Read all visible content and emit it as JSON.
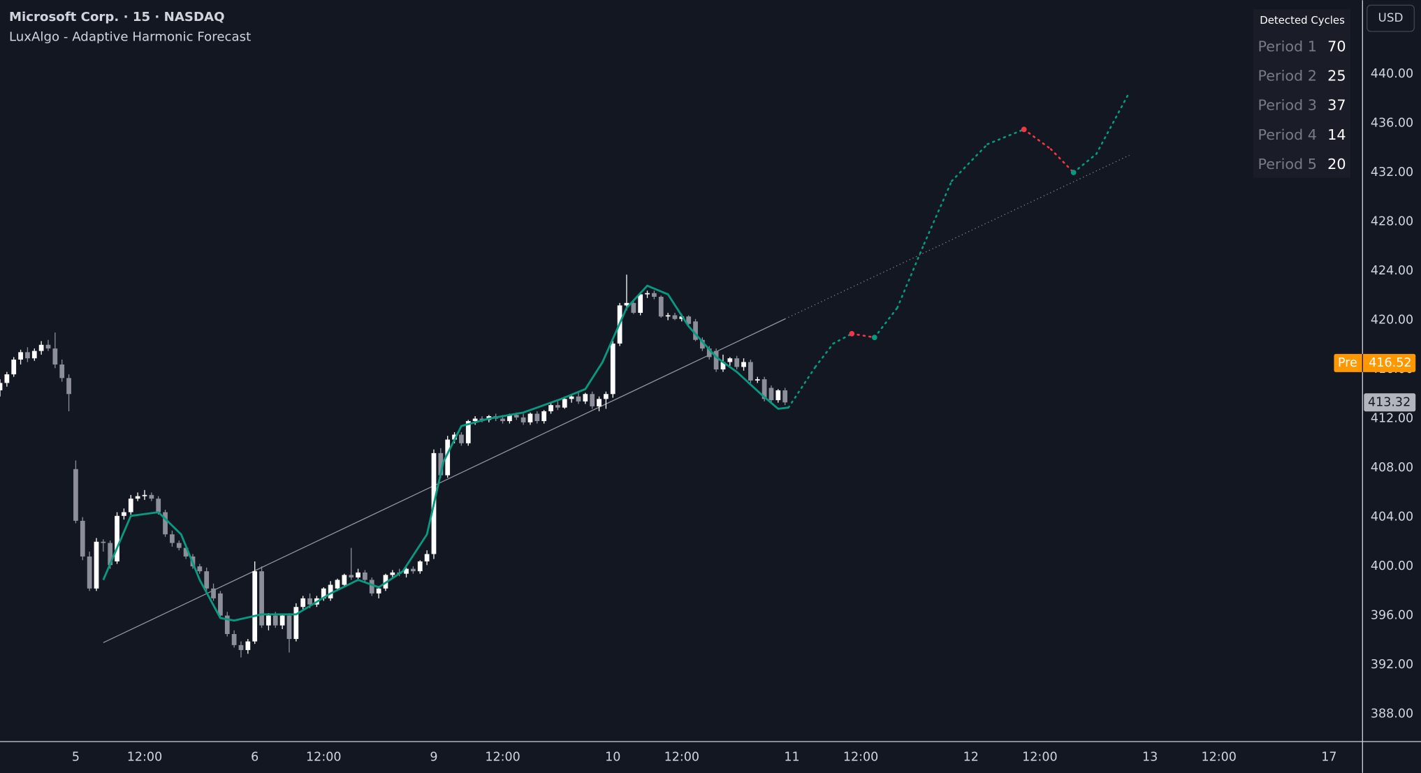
{
  "chart_data": {
    "type": "candlestick",
    "title": "Microsoft Corp. · 15 · NASDAQ",
    "subtitle": "LuxAlgo - Adaptive Harmonic Forecast",
    "currency": "USD",
    "up_color": "#ffffff",
    "down_color": "#8c8f99",
    "x": [
      -11,
      -10,
      -9,
      -8,
      -7,
      -6,
      -5,
      -4,
      -3,
      -2,
      -1,
      0,
      1,
      2,
      3,
      4,
      5,
      6,
      7,
      8,
      9,
      10,
      11,
      12,
      13,
      14,
      15,
      16,
      17,
      18,
      19,
      20,
      21,
      22,
      23,
      24,
      25,
      26,
      27,
      28,
      29,
      30,
      31,
      32,
      33,
      34,
      35,
      36,
      37,
      38,
      39,
      40,
      41,
      42,
      43,
      44,
      45,
      46,
      47,
      48,
      49,
      50,
      51,
      52,
      53,
      54,
      55,
      56,
      57,
      58,
      59,
      60,
      61,
      62,
      63,
      64,
      65,
      66,
      67,
      68,
      69,
      70,
      71,
      72,
      73,
      74,
      75,
      76,
      77,
      78,
      79,
      80,
      81,
      82,
      83,
      84,
      85,
      86,
      87,
      88,
      89,
      90,
      91,
      92,
      93,
      94,
      95,
      96,
      97,
      98,
      99,
      100,
      101,
      102,
      103
    ],
    "open": [
      414.3,
      414.9,
      415.6,
      416.8,
      417.4,
      416.9,
      417.5,
      418.0,
      417.7,
      416.4,
      415.3,
      407.9,
      403.7,
      400.8,
      398.2,
      402.0,
      401.9,
      400.4,
      404.1,
      404.4,
      405.5,
      405.7,
      405.8,
      405.5,
      404.4,
      402.6,
      401.9,
      401.5,
      400.8,
      400.0,
      399.6,
      398.2,
      397.8,
      396.0,
      394.5,
      393.6,
      393.2,
      393.9,
      399.6,
      395.2,
      396.0,
      395.2,
      396.0,
      394.1,
      396.7,
      397.4,
      396.9,
      397.4,
      397.4,
      398.2,
      398.5,
      399.3,
      399.1,
      399.5,
      398.9,
      397.8,
      398.2,
      399.3,
      399.5,
      399.4,
      399.8,
      399.6,
      400.4,
      401.0,
      409.2,
      407.4,
      410.3,
      410.7,
      410.0,
      411.8,
      412.0,
      411.9,
      412.2,
      412.0,
      411.8,
      412.3,
      412.1,
      411.7,
      412.4,
      411.8,
      412.6,
      413.1,
      412.9,
      413.6,
      413.8,
      413.4,
      414.0,
      413.0,
      413.6,
      414.0,
      418.1,
      421.2,
      421.4,
      420.6,
      422.1,
      422.2,
      421.9,
      420.3,
      420.4,
      420.1,
      420.3,
      419.9,
      418.4,
      417.7,
      417.5,
      416.0,
      416.6,
      416.9,
      416.2,
      416.6,
      415.1,
      415.2,
      414.5,
      413.5,
      414.3
    ],
    "high": [
      415.2,
      415.8,
      417.0,
      417.6,
      417.8,
      417.7,
      418.3,
      418.4,
      419.0,
      416.8,
      415.6,
      408.6,
      404.0,
      401.2,
      402.3,
      402.2,
      402.1,
      404.4,
      404.7,
      405.8,
      406.0,
      406.2,
      406.0,
      405.7,
      404.6,
      402.9,
      402.1,
      401.8,
      401.0,
      400.2,
      399.9,
      398.6,
      398.0,
      396.3,
      394.8,
      393.9,
      394.1,
      400.4,
      400.0,
      396.2,
      396.3,
      396.1,
      396.2,
      397.0,
      397.6,
      397.8,
      397.6,
      398.3,
      398.8,
      399.0,
      399.4,
      401.5,
      399.8,
      399.7,
      399.1,
      398.4,
      399.4,
      399.7,
      399.8,
      399.9,
      400.0,
      400.5,
      401.3,
      409.5,
      409.6,
      410.6,
      410.9,
      410.9,
      411.9,
      412.2,
      412.2,
      412.3,
      412.4,
      412.3,
      412.4,
      412.5,
      412.4,
      412.5,
      412.6,
      412.7,
      413.3,
      413.4,
      413.8,
      414.0,
      414.1,
      414.1,
      414.2,
      413.8,
      414.2,
      418.3,
      421.4,
      423.7,
      421.6,
      422.3,
      422.4,
      422.4,
      422.0,
      420.6,
      420.6,
      420.5,
      420.4,
      420.1,
      418.6,
      417.9,
      417.7,
      417.2,
      417.0,
      417.1,
      416.9,
      416.8,
      415.4,
      415.4,
      414.7,
      414.4,
      414.5
    ],
    "low": [
      413.8,
      414.6,
      415.4,
      416.4,
      416.6,
      416.7,
      417.2,
      417.5,
      416.1,
      415.0,
      412.6,
      403.5,
      400.5,
      398.0,
      398.0,
      401.2,
      399.8,
      400.2,
      403.8,
      404.2,
      405.3,
      405.4,
      405.3,
      404.2,
      402.4,
      401.6,
      401.3,
      400.6,
      399.8,
      399.4,
      398.0,
      397.2,
      395.8,
      394.3,
      393.4,
      392.6,
      392.9,
      393.7,
      395.0,
      394.8,
      395.0,
      394.9,
      393.0,
      393.9,
      396.5,
      396.6,
      396.7,
      397.2,
      397.2,
      398.0,
      398.3,
      398.9,
      398.8,
      398.7,
      397.6,
      397.4,
      398.0,
      399.0,
      399.2,
      399.1,
      399.4,
      399.4,
      400.1,
      400.6,
      407.2,
      407.2,
      410.0,
      409.8,
      409.8,
      411.5,
      411.7,
      411.7,
      411.8,
      411.6,
      411.6,
      411.9,
      411.5,
      411.5,
      411.6,
      411.6,
      412.4,
      412.7,
      412.8,
      413.3,
      413.2,
      413.2,
      412.8,
      412.6,
      412.8,
      413.7,
      417.9,
      420.8,
      420.5,
      420.4,
      421.8,
      421.7,
      420.2,
      420.0,
      420.0,
      419.9,
      419.5,
      418.3,
      417.5,
      416.8,
      415.8,
      415.8,
      416.3,
      416.0,
      415.9,
      414.9,
      414.9,
      413.4,
      413.3,
      413.3,
      413.1
    ],
    "close": [
      414.9,
      415.6,
      416.8,
      417.4,
      416.9,
      417.5,
      418.0,
      417.7,
      416.4,
      415.3,
      414.0,
      403.7,
      400.8,
      398.2,
      402.0,
      401.9,
      400.1,
      404.1,
      404.4,
      405.5,
      405.7,
      405.8,
      405.5,
      404.4,
      402.6,
      401.9,
      401.5,
      400.8,
      400.0,
      399.6,
      398.2,
      397.4,
      396.0,
      394.5,
      393.6,
      393.2,
      393.9,
      399.6,
      395.2,
      396.0,
      395.2,
      396.0,
      394.1,
      396.7,
      397.4,
      396.9,
      397.4,
      398.2,
      398.5,
      398.9,
      399.3,
      399.1,
      399.5,
      398.9,
      397.8,
      398.2,
      399.3,
      399.5,
      399.4,
      399.8,
      399.6,
      400.4,
      401.0,
      409.2,
      407.4,
      410.3,
      410.7,
      410.0,
      411.8,
      412.0,
      411.9,
      412.2,
      412.0,
      411.8,
      412.3,
      412.1,
      411.7,
      412.4,
      411.8,
      412.6,
      413.1,
      412.9,
      413.6,
      413.8,
      413.4,
      414.0,
      413.0,
      413.6,
      414.0,
      418.1,
      421.2,
      421.4,
      420.6,
      422.1,
      422.2,
      421.9,
      420.3,
      420.4,
      420.1,
      420.3,
      419.7,
      418.4,
      417.7,
      417.0,
      416.0,
      416.6,
      416.9,
      416.2,
      416.6,
      415.1,
      415.2,
      413.6,
      413.5,
      414.3,
      413.32
    ],
    "harmonic": {
      "color": "#089981",
      "x": [
        4,
        8,
        12,
        15.3,
        18,
        21,
        23,
        27,
        32,
        37,
        41,
        44,
        47.5,
        51,
        53.4,
        56,
        60,
        65,
        70.5,
        74,
        76.5,
        80,
        83,
        86,
        89,
        93,
        96,
        99.5,
        102,
        103.5
      ],
      "values": [
        398.9,
        404.1,
        404.4,
        402.6,
        398.9,
        395.8,
        395.6,
        396.1,
        396.1,
        397.8,
        398.9,
        398.3,
        399.6,
        402.6,
        408.5,
        411.4,
        412.0,
        412.5,
        413.6,
        414.4,
        416.6,
        421.0,
        422.8,
        422.1,
        419.5,
        417.0,
        415.8,
        414.0,
        412.8,
        412.9
      ]
    },
    "forecast": {
      "up_color": "#089981",
      "down_color": "#f23645",
      "x": [
        103.5,
        107.4,
        110,
        112.7,
        116,
        119.3,
        123.2,
        127.2,
        132.4,
        137.7,
        141.6,
        144.9,
        148.2,
        152.8
      ],
      "values": [
        412.9,
        416.2,
        418.1,
        418.9,
        418.6,
        421.0,
        426.2,
        431.3,
        434.3,
        435.5,
        433.9,
        432.0,
        433.5,
        438.3
      ]
    },
    "trend": {
      "color": "#b2b5be",
      "x": [
        4,
        103,
        153
      ],
      "values": [
        393.8,
        420.1,
        433.4
      ]
    },
    "xlim": [
      -11,
      186.8
    ],
    "xticks": [
      {
        "value": 0,
        "label": "5"
      },
      {
        "value": 10,
        "label": "12:00"
      },
      {
        "value": 26,
        "label": "6"
      },
      {
        "value": 36,
        "label": "12:00"
      },
      {
        "value": 52,
        "label": "9"
      },
      {
        "value": 62,
        "label": "12:00"
      },
      {
        "value": 78,
        "label": "10"
      },
      {
        "value": 88,
        "label": "12:00"
      },
      {
        "value": 104,
        "label": "11"
      },
      {
        "value": 114,
        "label": "12:00"
      },
      {
        "value": 130,
        "label": "12"
      },
      {
        "value": 140,
        "label": "12:00"
      },
      {
        "value": 156,
        "label": "13"
      },
      {
        "value": 166,
        "label": "12:00"
      },
      {
        "value": 182,
        "label": "17"
      }
    ],
    "ylim": [
      385.8,
      446.0
    ],
    "yticks": [
      {
        "value": 388,
        "label": "388.00"
      },
      {
        "value": 392,
        "label": "392.00"
      },
      {
        "value": 396,
        "label": "396.00"
      },
      {
        "value": 400,
        "label": "400.00"
      },
      {
        "value": 404,
        "label": "404.00"
      },
      {
        "value": 408,
        "label": "408.00"
      },
      {
        "value": 412,
        "label": "412.00"
      },
      {
        "value": 416,
        "label": "416.00"
      },
      {
        "value": 420,
        "label": "420.00"
      },
      {
        "value": 424,
        "label": "424.00"
      },
      {
        "value": 428,
        "label": "428.00"
      },
      {
        "value": 432,
        "label": "432.00"
      },
      {
        "value": 436,
        "label": "436.00"
      },
      {
        "value": 440,
        "label": "440.00"
      }
    ],
    "pre_price": {
      "label": "Pre",
      "value": 416.52,
      "color": "#ff9800"
    },
    "last_price": {
      "value": 413.32,
      "color": "#b2b5be"
    },
    "table": {
      "title": "Detected Cycles",
      "rows": [
        [
          "Period 1",
          70
        ],
        [
          "Period 2",
          25
        ],
        [
          "Period 3",
          37
        ],
        [
          "Period 4",
          14
        ],
        [
          "Period 5",
          20
        ]
      ]
    }
  }
}
